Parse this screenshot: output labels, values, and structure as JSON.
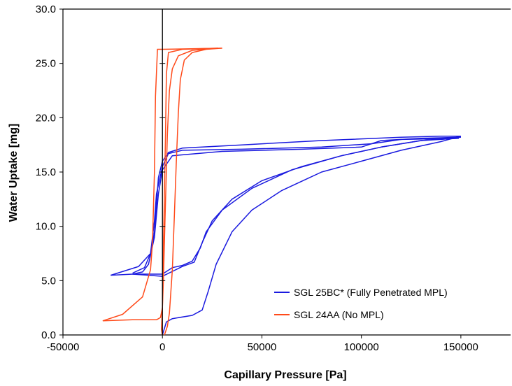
{
  "chart_data": {
    "type": "line",
    "xlabel": "Capillary Pressure [Pa]",
    "ylabel": "Water Uptake [mg]",
    "xlim": [
      -50000,
      175000
    ],
    "ylim": [
      0,
      30
    ],
    "x_ticks": [
      -50000,
      0,
      50000,
      100000,
      150000
    ],
    "x_tick_labels": [
      "-50000",
      "0",
      "50000",
      "100000",
      "150000"
    ],
    "y_ticks": [
      0,
      5,
      10,
      15,
      20,
      25,
      30
    ],
    "y_tick_labels": [
      "0.0",
      "5.0",
      "10.0",
      "15.0",
      "20.0",
      "25.0",
      "30.0"
    ],
    "grid": false,
    "legend_position": "bottom-right",
    "series": [
      {
        "name": "SGL 25BC* (Fully Penetrated MPL)",
        "color": "#1a1adf",
        "curves": [
          [
            [
              0,
              0.0
            ],
            [
              2000,
              1.2
            ],
            [
              5000,
              1.5
            ],
            [
              15000,
              1.8
            ],
            [
              20000,
              2.3
            ],
            [
              23000,
              4.0
            ],
            [
              27000,
              6.5
            ],
            [
              35000,
              9.5
            ],
            [
              45000,
              11.5
            ],
            [
              60000,
              13.3
            ],
            [
              80000,
              15.0
            ],
            [
              100000,
              16.0
            ],
            [
              120000,
              17.0
            ],
            [
              140000,
              17.8
            ],
            [
              150000,
              18.3
            ]
          ],
          [
            [
              150000,
              18.3
            ],
            [
              140000,
              18.3
            ],
            [
              120000,
              18.2
            ],
            [
              80000,
              17.9
            ],
            [
              40000,
              17.5
            ],
            [
              10000,
              17.2
            ],
            [
              3000,
              16.8
            ],
            [
              0,
              16.0
            ],
            [
              -2000,
              14.5
            ],
            [
              -3000,
              12.0
            ],
            [
              -4000,
              9.5
            ],
            [
              -6000,
              7.5
            ],
            [
              -12000,
              6.3
            ],
            [
              -26000,
              5.5
            ]
          ],
          [
            [
              -26000,
              5.5
            ],
            [
              -15000,
              5.6
            ],
            [
              0,
              5.6
            ],
            [
              5000,
              6.2
            ],
            [
              10000,
              6.4
            ],
            [
              15000,
              6.8
            ],
            [
              19000,
              8.0
            ],
            [
              22000,
              9.5
            ],
            [
              30000,
              11.5
            ],
            [
              45000,
              13.5
            ],
            [
              65000,
              15.2
            ],
            [
              90000,
              16.5
            ],
            [
              110000,
              17.3
            ],
            [
              130000,
              17.9
            ],
            [
              150000,
              18.2
            ]
          ],
          [
            [
              150000,
              18.2
            ],
            [
              130000,
              18.1
            ],
            [
              110000,
              17.9
            ],
            [
              100000,
              17.3
            ],
            [
              70000,
              17.1
            ],
            [
              30000,
              16.9
            ],
            [
              5000,
              16.5
            ],
            [
              0,
              15.2
            ],
            [
              -2000,
              13.0
            ],
            [
              -4000,
              9.0
            ],
            [
              -7000,
              6.5
            ],
            [
              -10000,
              5.8
            ],
            [
              -15000,
              5.6
            ],
            [
              0,
              5.4
            ],
            [
              10000,
              6.3
            ],
            [
              16000,
              6.7
            ],
            [
              20000,
              8.5
            ],
            [
              25000,
              10.5
            ],
            [
              35000,
              12.5
            ],
            [
              50000,
              14.2
            ],
            [
              70000,
              15.5
            ],
            [
              90000,
              16.5
            ],
            [
              110000,
              17.3
            ],
            [
              130000,
              17.9
            ],
            [
              149000,
              18.1
            ]
          ],
          [
            [
              149000,
              18.1
            ],
            [
              120000,
              18.0
            ],
            [
              105000,
              17.6
            ],
            [
              80000,
              17.3
            ],
            [
              40000,
              17.1
            ],
            [
              10000,
              17.0
            ],
            [
              3000,
              16.7
            ],
            [
              0,
              15.5
            ],
            [
              -3000,
              13.0
            ],
            [
              -4000,
              10.5
            ],
            [
              -6000,
              7.5
            ],
            [
              -9000,
              6.2
            ],
            [
              -15000,
              5.7
            ]
          ]
        ]
      },
      {
        "name": "SGL 24AA (No MPL)",
        "color": "#ff4a1a",
        "curves": [
          [
            [
              1000,
              0.0
            ],
            [
              2500,
              0.8
            ],
            [
              3500,
              2.0
            ],
            [
              5000,
              6.0
            ],
            [
              6000,
              11.0
            ],
            [
              7000,
              16.0
            ],
            [
              8000,
              20.5
            ],
            [
              9000,
              23.5
            ],
            [
              11000,
              25.3
            ],
            [
              15000,
              26.0
            ],
            [
              22000,
              26.3
            ],
            [
              30000,
              26.4
            ]
          ],
          [
            [
              30000,
              26.4
            ],
            [
              0,
              26.3
            ],
            [
              -2500,
              26.3
            ],
            [
              -3500,
              22.0
            ],
            [
              -4000,
              15.0
            ],
            [
              -5000,
              8.5
            ],
            [
              -6000,
              6.0
            ],
            [
              -10000,
              3.5
            ],
            [
              -20000,
              1.9
            ],
            [
              -30000,
              1.3
            ]
          ],
          [
            [
              -30000,
              1.3
            ],
            [
              -15000,
              1.4
            ],
            [
              -3000,
              1.4
            ],
            [
              -1000,
              1.6
            ],
            [
              0,
              2.5
            ],
            [
              500,
              5.0
            ],
            [
              1500,
              12.0
            ],
            [
              2500,
              18.5
            ],
            [
              3500,
              22.5
            ],
            [
              5000,
              24.5
            ],
            [
              8000,
              25.7
            ],
            [
              15000,
              26.2
            ],
            [
              28000,
              26.4
            ]
          ],
          [
            [
              28000,
              26.4
            ],
            [
              10000,
              26.3
            ],
            [
              3000,
              26.0
            ],
            [
              2000,
              24.0
            ],
            [
              1500,
              18.0
            ],
            [
              500,
              8.0
            ],
            [
              0,
              2.5
            ],
            [
              -500,
              0.5
            ],
            [
              0,
              0.0
            ]
          ]
        ]
      }
    ]
  }
}
